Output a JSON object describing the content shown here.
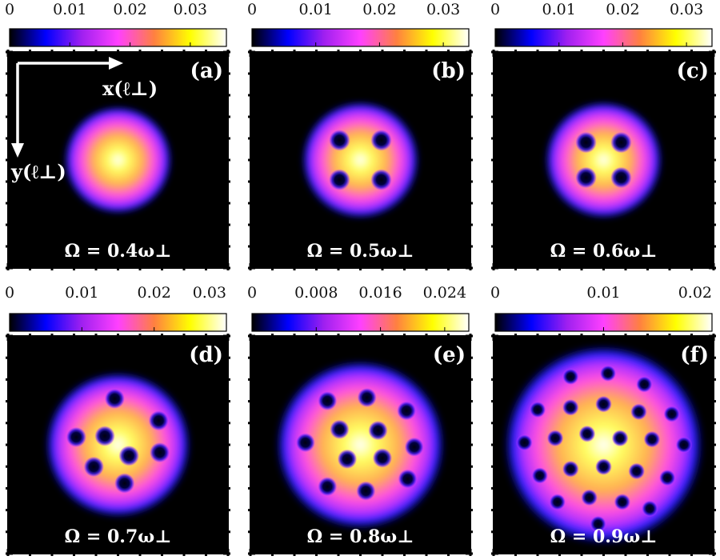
{
  "figure": {
    "axis_labels": {
      "x": "x(ℓ⊥)",
      "y": "y(ℓ⊥)"
    },
    "colormap": [
      "#000000",
      "#0000ff",
      "#a020f0",
      "#ff40ff",
      "#ff8040",
      "#ffff00",
      "#ffffff"
    ]
  },
  "chart_data": [
    {
      "type": "heatmap",
      "panel": "(a)",
      "omega_value": "0.4",
      "omega_label": "Ω = 0.4ω⊥",
      "colorbar": {
        "min": 0,
        "max": 0.036,
        "ticks": [
          0,
          0.01,
          0.02,
          0.03
        ],
        "tick_labels": [
          "0",
          "0.01",
          "0.02",
          "0.03"
        ]
      },
      "cloud_radius": 0.46,
      "cloud_peak": 1.0,
      "vortex_count": 0,
      "vortices": []
    },
    {
      "type": "heatmap",
      "panel": "(b)",
      "omega_value": "0.5",
      "omega_label": "Ω = 0.5ω⊥",
      "colorbar": {
        "min": 0,
        "max": 0.034,
        "ticks": [
          0,
          0.01,
          0.02,
          0.03
        ],
        "tick_labels": [
          "0",
          "0.01",
          "0.02",
          "0.03"
        ]
      },
      "cloud_radius": 0.5,
      "vortex_count": 4,
      "vortices": [
        [
          -0.19,
          -0.18
        ],
        [
          0.19,
          -0.18
        ],
        [
          -0.19,
          0.18
        ],
        [
          0.19,
          0.18
        ]
      ]
    },
    {
      "type": "heatmap",
      "panel": "(c)",
      "omega_value": "0.6",
      "omega_label": "Ω = 0.6ω⊥",
      "colorbar": {
        "min": 0,
        "max": 0.034,
        "ticks": [
          0,
          0.01,
          0.02,
          0.03
        ],
        "tick_labels": [
          "0",
          "0.01",
          "0.02",
          "0.03"
        ]
      },
      "cloud_radius": 0.5,
      "vortex_count": 4,
      "vortices": [
        [
          -0.16,
          -0.16
        ],
        [
          0.16,
          -0.16
        ],
        [
          -0.16,
          0.16
        ],
        [
          0.16,
          0.16
        ]
      ]
    },
    {
      "type": "heatmap",
      "panel": "(d)",
      "omega_value": "0.7",
      "omega_label": "Ω = 0.7ω⊥",
      "colorbar": {
        "min": 0,
        "max": 0.03,
        "ticks": [
          0,
          0.01,
          0.02,
          0.03
        ],
        "tick_labels": [
          "0",
          "0.01",
          "0.02",
          "0.03"
        ]
      },
      "cloud_radius": 0.62,
      "vortex_count": 8,
      "vortices": [
        [
          -0.03,
          -0.42
        ],
        [
          0.37,
          -0.22
        ],
        [
          -0.38,
          -0.07
        ],
        [
          -0.12,
          -0.08
        ],
        [
          0.1,
          0.1
        ],
        [
          0.38,
          0.07
        ],
        [
          -0.22,
          0.2
        ],
        [
          0.06,
          0.35
        ]
      ]
    },
    {
      "type": "heatmap",
      "panel": "(e)",
      "omega_value": "0.8",
      "omega_label": "Ω = 0.8ω⊥",
      "colorbar": {
        "min": 0,
        "max": 0.027,
        "ticks": [
          0,
          0.008,
          0.016,
          0.024
        ],
        "tick_labels": [
          "0",
          "0.008",
          "0.016",
          "0.024"
        ]
      },
      "cloud_radius": 0.72,
      "vortex_count": 12,
      "vortices": [
        [
          -0.3,
          -0.4
        ],
        [
          0.06,
          -0.43
        ],
        [
          0.42,
          -0.31
        ],
        [
          -0.5,
          -0.02
        ],
        [
          -0.19,
          -0.14
        ],
        [
          0.16,
          -0.13
        ],
        [
          -0.12,
          0.13
        ],
        [
          0.2,
          0.12
        ],
        [
          0.49,
          0.02
        ],
        [
          -0.3,
          0.38
        ],
        [
          0.05,
          0.42
        ],
        [
          0.43,
          0.31
        ]
      ]
    },
    {
      "type": "heatmap",
      "panel": "(f)",
      "omega_value": "0.9",
      "omega_label": "Ω = 0.9ω⊥",
      "colorbar": {
        "min": 0,
        "max": 0.02,
        "ticks": [
          0,
          0.01,
          0.02
        ],
        "tick_labels": [
          "0",
          "0.01",
          "0.02"
        ]
      },
      "cloud_radius": 0.85,
      "vortex_count": 24,
      "vortices": [
        [
          -0.3,
          -0.62
        ],
        [
          0.04,
          -0.65
        ],
        [
          0.37,
          -0.55
        ],
        [
          -0.6,
          -0.32
        ],
        [
          -0.3,
          -0.34
        ],
        [
          0.0,
          -0.37
        ],
        [
          0.32,
          -0.3
        ],
        [
          0.62,
          -0.28
        ],
        [
          -0.72,
          -0.02
        ],
        [
          -0.44,
          -0.06
        ],
        [
          -0.15,
          -0.1
        ],
        [
          0.15,
          -0.06
        ],
        [
          0.44,
          -0.05
        ],
        [
          0.73,
          0.0
        ],
        [
          -0.58,
          0.28
        ],
        [
          -0.3,
          0.22
        ],
        [
          0.0,
          0.2
        ],
        [
          0.3,
          0.24
        ],
        [
          0.58,
          0.3
        ],
        [
          -0.42,
          0.52
        ],
        [
          -0.13,
          0.48
        ],
        [
          0.17,
          0.52
        ],
        [
          0.42,
          0.58
        ],
        [
          -0.05,
          0.72
        ]
      ]
    }
  ]
}
